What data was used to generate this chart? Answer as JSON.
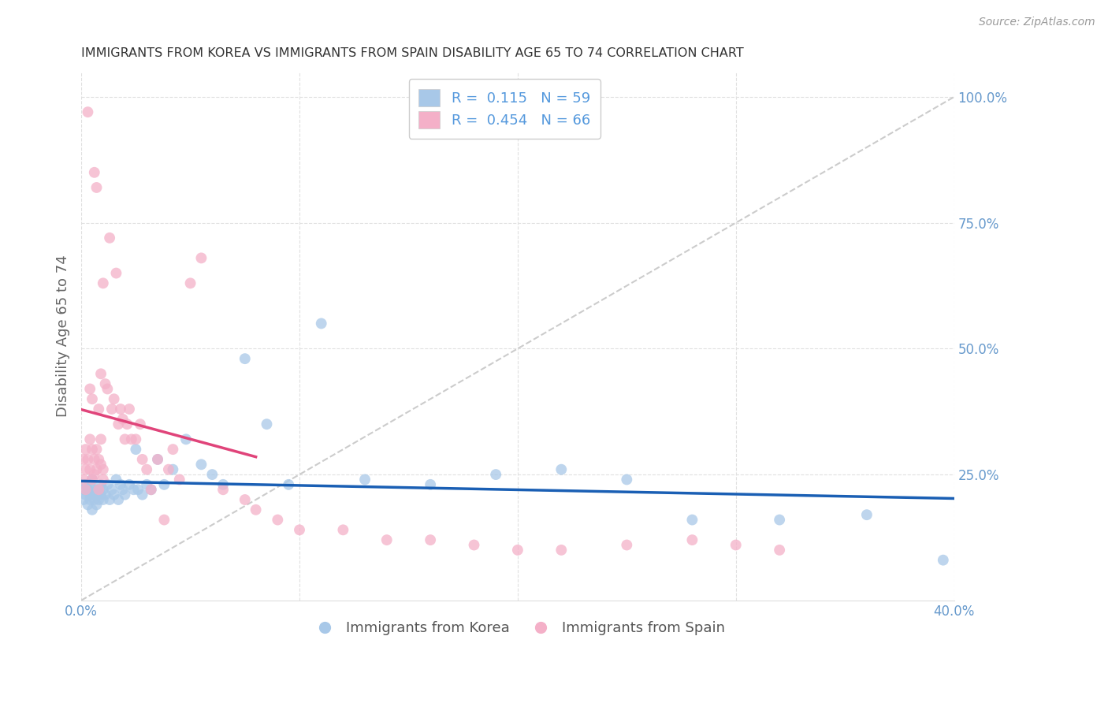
{
  "title": "IMMIGRANTS FROM KOREA VS IMMIGRANTS FROM SPAIN DISABILITY AGE 65 TO 74 CORRELATION CHART",
  "source": "Source: ZipAtlas.com",
  "ylabel": "Disability Age 65 to 74",
  "xlim": [
    0.0,
    0.4
  ],
  "ylim": [
    0.0,
    1.05
  ],
  "korea_R": 0.115,
  "korea_N": 59,
  "spain_R": 0.454,
  "spain_N": 66,
  "korea_color": "#a8c8e8",
  "spain_color": "#f4b0c8",
  "korea_line_color": "#1a5fb4",
  "spain_line_color": "#e0447a",
  "ref_line_color": "#cccccc",
  "background_color": "#ffffff",
  "grid_color": "#e0e0e0",
  "title_color": "#333333",
  "axis_tick_color": "#6699cc",
  "legend_text_color": "#5599dd",
  "korea_x": [
    0.001,
    0.001,
    0.002,
    0.002,
    0.003,
    0.003,
    0.004,
    0.004,
    0.004,
    0.005,
    0.005,
    0.005,
    0.006,
    0.006,
    0.007,
    0.007,
    0.008,
    0.008,
    0.009,
    0.009,
    0.01,
    0.01,
    0.011,
    0.012,
    0.013,
    0.014,
    0.015,
    0.016,
    0.017,
    0.018,
    0.019,
    0.02,
    0.022,
    0.024,
    0.025,
    0.026,
    0.028,
    0.03,
    0.032,
    0.035,
    0.038,
    0.042,
    0.048,
    0.055,
    0.06,
    0.065,
    0.075,
    0.085,
    0.095,
    0.11,
    0.13,
    0.16,
    0.19,
    0.22,
    0.25,
    0.28,
    0.32,
    0.36,
    0.395
  ],
  "korea_y": [
    0.22,
    0.2,
    0.21,
    0.23,
    0.19,
    0.22,
    0.21,
    0.2,
    0.23,
    0.18,
    0.21,
    0.24,
    0.2,
    0.22,
    0.21,
    0.19,
    0.22,
    0.2,
    0.21,
    0.23,
    0.22,
    0.2,
    0.21,
    0.23,
    0.2,
    0.22,
    0.21,
    0.24,
    0.2,
    0.23,
    0.22,
    0.21,
    0.23,
    0.22,
    0.3,
    0.22,
    0.21,
    0.23,
    0.22,
    0.28,
    0.23,
    0.26,
    0.32,
    0.27,
    0.25,
    0.23,
    0.48,
    0.35,
    0.23,
    0.55,
    0.24,
    0.23,
    0.25,
    0.26,
    0.24,
    0.16,
    0.16,
    0.17,
    0.08
  ],
  "spain_x": [
    0.001,
    0.001,
    0.002,
    0.002,
    0.002,
    0.003,
    0.003,
    0.003,
    0.004,
    0.004,
    0.005,
    0.005,
    0.005,
    0.006,
    0.006,
    0.007,
    0.007,
    0.008,
    0.008,
    0.009,
    0.009,
    0.01,
    0.01,
    0.011,
    0.012,
    0.012,
    0.013,
    0.014,
    0.015,
    0.015,
    0.016,
    0.017,
    0.018,
    0.019,
    0.02,
    0.021,
    0.022,
    0.023,
    0.025,
    0.026,
    0.028,
    0.03,
    0.032,
    0.035,
    0.038,
    0.04,
    0.043,
    0.046,
    0.048,
    0.05,
    0.055,
    0.058,
    0.062,
    0.065,
    0.07,
    0.075,
    0.082,
    0.09,
    0.1,
    0.11,
    0.13,
    0.15,
    0.17,
    0.195,
    0.21,
    0.24
  ],
  "spain_y": [
    0.24,
    0.28,
    0.22,
    0.26,
    0.3,
    0.21,
    0.24,
    0.32,
    0.23,
    0.28,
    0.22,
    0.26,
    0.35,
    0.24,
    0.3,
    0.22,
    0.27,
    0.26,
    0.35,
    0.28,
    0.38,
    0.24,
    0.3,
    0.4,
    0.26,
    0.35,
    0.28,
    0.32,
    0.38,
    0.3,
    0.35,
    0.28,
    0.36,
    0.3,
    0.32,
    0.35,
    0.38,
    0.3,
    0.34,
    0.4,
    0.32,
    0.28,
    0.22,
    0.26,
    0.15,
    0.26,
    0.3,
    0.23,
    0.35,
    0.22,
    0.25,
    0.2,
    0.2,
    0.17,
    0.16,
    0.14,
    0.15,
    0.13,
    0.12,
    0.11,
    0.12,
    0.1,
    0.1,
    0.11,
    0.12,
    0.1
  ]
}
